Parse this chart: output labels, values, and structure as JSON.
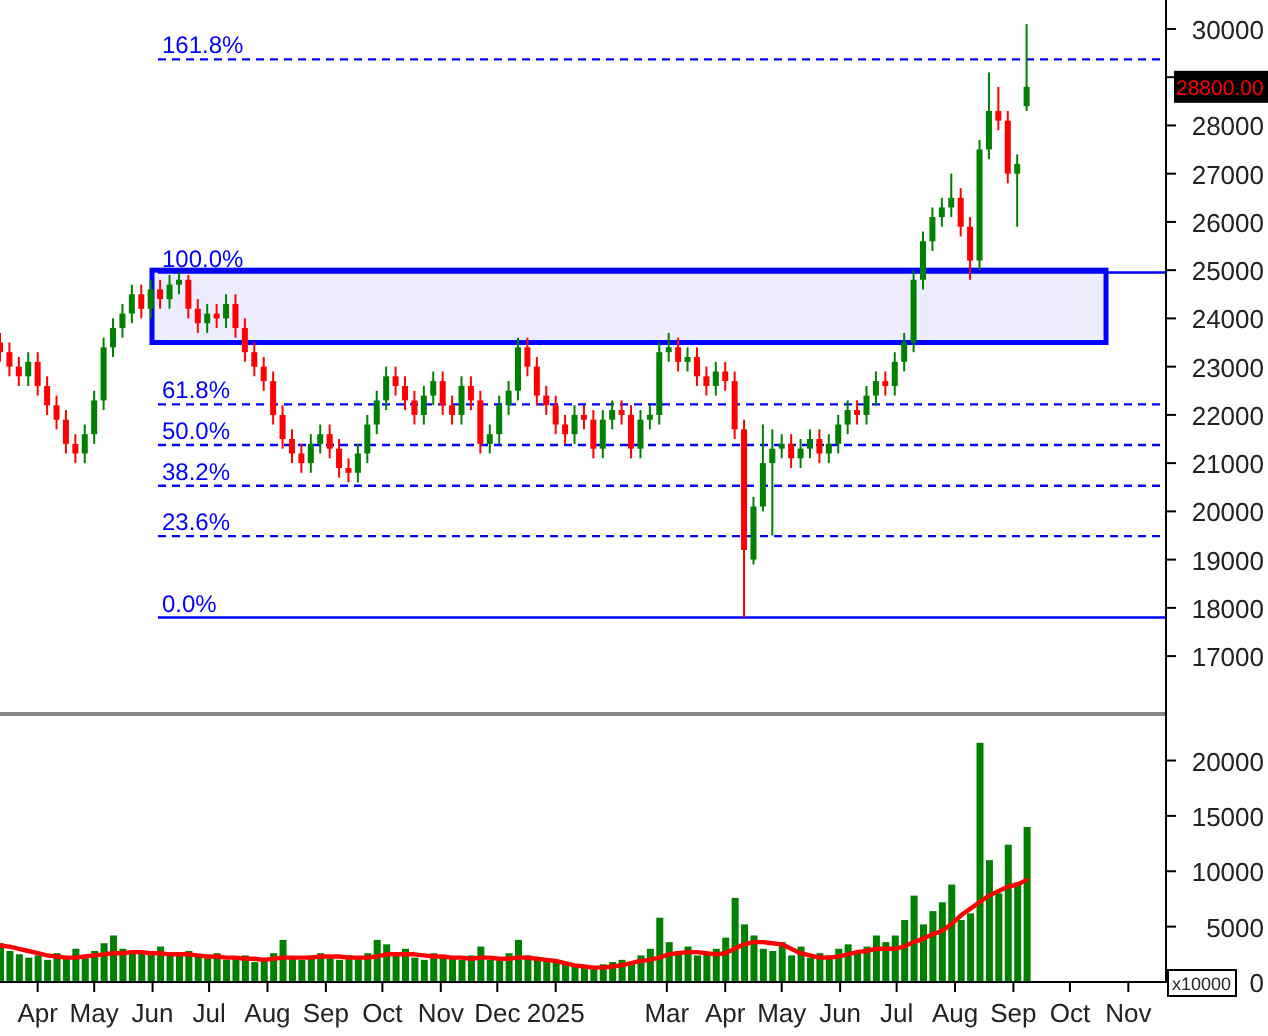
{
  "chart_data": [
    {
      "type": "candlestick",
      "tick_labels": "y",
      "x": [
        "2024-03-12",
        "2024-03-17",
        "2024-03-22",
        "2024-03-27",
        "2024-04-01",
        "2024-04-06",
        "2024-04-11",
        "2024-04-16",
        "2024-04-21",
        "2024-04-26",
        "2024-05-01",
        "2024-05-06",
        "2024-05-11",
        "2024-05-16",
        "2024-05-21",
        "2024-05-26",
        "2024-05-31",
        "2024-06-05",
        "2024-06-10",
        "2024-06-15",
        "2024-06-20",
        "2024-06-25",
        "2024-06-30",
        "2024-07-05",
        "2024-07-10",
        "2024-07-15",
        "2024-07-20",
        "2024-07-25",
        "2024-07-30",
        "2024-08-04",
        "2024-08-09",
        "2024-08-14",
        "2024-08-19",
        "2024-08-24",
        "2024-08-29",
        "2024-09-03",
        "2024-09-08",
        "2024-09-13",
        "2024-09-18",
        "2024-09-23",
        "2024-09-28",
        "2024-10-03",
        "2024-10-08",
        "2024-10-13",
        "2024-10-18",
        "2024-10-23",
        "2024-10-28",
        "2024-11-02",
        "2024-11-07",
        "2024-11-12",
        "2024-11-17",
        "2024-11-22",
        "2024-11-27",
        "2024-12-02",
        "2024-12-07",
        "2024-12-12",
        "2024-12-17",
        "2024-12-22",
        "2024-12-27",
        "2025-01-01",
        "2025-01-06",
        "2025-01-11",
        "2025-01-16",
        "2025-01-21",
        "2025-01-26",
        "2025-01-31",
        "2025-02-05",
        "2025-02-10",
        "2025-02-15",
        "2025-02-20",
        "2025-02-25",
        "2025-03-02",
        "2025-03-07",
        "2025-03-12",
        "2025-03-17",
        "2025-03-22",
        "2025-03-27",
        "2025-04-01",
        "2025-04-06",
        "2025-04-11",
        "2025-04-16",
        "2025-04-21",
        "2025-04-26",
        "2025-05-01",
        "2025-05-06",
        "2025-05-11",
        "2025-05-16",
        "2025-05-21",
        "2025-05-26",
        "2025-05-31",
        "2025-06-05",
        "2025-06-10",
        "2025-06-15",
        "2025-06-20",
        "2025-06-25",
        "2025-06-30",
        "2025-07-05",
        "2025-07-10",
        "2025-07-15",
        "2025-07-20",
        "2025-07-25",
        "2025-07-30",
        "2025-08-04",
        "2025-08-09",
        "2025-08-14",
        "2025-08-19",
        "2025-08-24",
        "2025-08-29",
        "2025-09-03",
        "2025-09-08"
      ],
      "ohlc": [
        [
          23500,
          23700,
          23100,
          23300
        ],
        [
          23300,
          23500,
          22800,
          23000
        ],
        [
          23000,
          23200,
          22600,
          22800
        ],
        [
          22800,
          23300,
          22600,
          23100
        ],
        [
          23100,
          23300,
          22400,
          22600
        ],
        [
          22600,
          22800,
          22000,
          22200
        ],
        [
          22200,
          22400,
          21700,
          21900
        ],
        [
          21900,
          22100,
          21200,
          21400
        ],
        [
          21400,
          21600,
          21000,
          21200
        ],
        [
          21200,
          21800,
          21000,
          21600
        ],
        [
          21600,
          22500,
          21400,
          22300
        ],
        [
          22300,
          23600,
          22100,
          23400
        ],
        [
          23400,
          24000,
          23200,
          23800
        ],
        [
          23800,
          24300,
          23600,
          24100
        ],
        [
          24100,
          24700,
          23900,
          24500
        ],
        [
          24500,
          24700,
          24000,
          24200
        ],
        [
          24200,
          24800,
          24000,
          24600
        ],
        [
          24600,
          24800,
          24200,
          24400
        ],
        [
          24400,
          24900,
          24200,
          24700
        ],
        [
          24700,
          24950,
          24500,
          24800
        ],
        [
          24800,
          24900,
          24000,
          24200
        ],
        [
          24200,
          24400,
          23700,
          23900
        ],
        [
          23900,
          24300,
          23700,
          24100
        ],
        [
          24100,
          24300,
          23800,
          24000
        ],
        [
          24000,
          24500,
          23800,
          24300
        ],
        [
          24300,
          24500,
          23600,
          23800
        ],
        [
          23800,
          24000,
          23100,
          23300
        ],
        [
          23300,
          23500,
          22800,
          23000
        ],
        [
          23000,
          23200,
          22500,
          22700
        ],
        [
          22700,
          22900,
          21800,
          22000
        ],
        [
          22000,
          22200,
          21300,
          21500
        ],
        [
          21500,
          21700,
          21000,
          21200
        ],
        [
          21200,
          21400,
          20800,
          21000
        ],
        [
          21000,
          21600,
          20800,
          21400
        ],
        [
          21400,
          21800,
          21200,
          21600
        ],
        [
          21600,
          21800,
          21100,
          21300
        ],
        [
          21300,
          21500,
          20700,
          20900
        ],
        [
          20900,
          21100,
          20600,
          20800
        ],
        [
          20800,
          21400,
          20600,
          21200
        ],
        [
          21200,
          22000,
          21000,
          21800
        ],
        [
          21800,
          22500,
          21600,
          22300
        ],
        [
          22300,
          23000,
          22100,
          22800
        ],
        [
          22800,
          23000,
          22400,
          22600
        ],
        [
          22600,
          22800,
          22100,
          22300
        ],
        [
          22300,
          22500,
          21800,
          22000
        ],
        [
          22000,
          22600,
          21800,
          22400
        ],
        [
          22400,
          22900,
          22200,
          22700
        ],
        [
          22700,
          22900,
          22000,
          22200
        ],
        [
          22200,
          22400,
          21800,
          22000
        ],
        [
          22000,
          22800,
          21800,
          22600
        ],
        [
          22600,
          22800,
          22100,
          22300
        ],
        [
          22300,
          22500,
          21200,
          21400
        ],
        [
          21400,
          21800,
          21200,
          21600
        ],
        [
          21600,
          22400,
          21400,
          22200
        ],
        [
          22200,
          22700,
          22000,
          22500
        ],
        [
          22500,
          23600,
          22300,
          23400
        ],
        [
          23400,
          23600,
          22800,
          23000
        ],
        [
          23000,
          23200,
          22200,
          22400
        ],
        [
          22400,
          22600,
          22000,
          22200
        ],
        [
          22200,
          22400,
          21600,
          21800
        ],
        [
          21800,
          22000,
          21400,
          21600
        ],
        [
          21600,
          22200,
          21400,
          22000
        ],
        [
          22000,
          22200,
          21700,
          21900
        ],
        [
          21900,
          22100,
          21100,
          21300
        ],
        [
          21300,
          22100,
          21100,
          21900
        ],
        [
          21900,
          22300,
          21700,
          22100
        ],
        [
          22100,
          22300,
          21800,
          22000
        ],
        [
          22000,
          22200,
          21100,
          21300
        ],
        [
          21300,
          22100,
          21100,
          21900
        ],
        [
          21900,
          22200,
          21700,
          22000
        ],
        [
          22000,
          23500,
          21800,
          23300
        ],
        [
          23300,
          23700,
          23100,
          23400
        ],
        [
          23400,
          23600,
          22900,
          23100
        ],
        [
          23100,
          23400,
          22900,
          23200
        ],
        [
          23200,
          23400,
          22600,
          22800
        ],
        [
          22800,
          23000,
          22400,
          22600
        ],
        [
          22600,
          23100,
          22400,
          22900
        ],
        [
          22900,
          23100,
          22500,
          22700
        ],
        [
          22700,
          22900,
          21500,
          21700
        ],
        [
          21700,
          21900,
          17800,
          19200
        ],
        [
          19000,
          20300,
          18900,
          20100
        ],
        [
          20100,
          21800,
          20000,
          21000
        ],
        [
          21000,
          21700,
          19500,
          21300
        ],
        [
          21300,
          21600,
          21100,
          21400
        ],
        [
          21400,
          21600,
          20900,
          21100
        ],
        [
          21100,
          21500,
          20900,
          21300
        ],
        [
          21300,
          21700,
          21100,
          21500
        ],
        [
          21500,
          21700,
          21000,
          21200
        ],
        [
          21200,
          21600,
          21000,
          21400
        ],
        [
          21400,
          22000,
          21200,
          21800
        ],
        [
          21800,
          22300,
          21600,
          22100
        ],
        [
          22100,
          22300,
          21800,
          22000
        ],
        [
          22000,
          22600,
          21800,
          22400
        ],
        [
          22400,
          22900,
          22200,
          22700
        ],
        [
          22700,
          22900,
          22400,
          22600
        ],
        [
          22600,
          23300,
          22400,
          23100
        ],
        [
          23100,
          23700,
          22900,
          23500
        ],
        [
          23500,
          25000,
          23300,
          24800
        ],
        [
          24800,
          25800,
          24600,
          25600
        ],
        [
          25600,
          26300,
          25400,
          26100
        ],
        [
          26100,
          26500,
          25900,
          26300
        ],
        [
          26300,
          27000,
          26100,
          26500
        ],
        [
          26500,
          26700,
          25700,
          25900
        ],
        [
          25900,
          26100,
          24800,
          25200
        ],
        [
          25200,
          27700,
          25000,
          27500
        ],
        [
          27500,
          29100,
          27300,
          28300
        ],
        [
          28300,
          28800,
          27900,
          28100
        ],
        [
          28100,
          28300,
          26800,
          27000
        ],
        [
          27000,
          27400,
          25900,
          27200
        ],
        [
          28400,
          30100,
          28300,
          28800
        ]
      ],
      "xlim": [
        "2024-03-12",
        "2025-11-21"
      ],
      "ylim": [
        15800,
        30600
      ],
      "yticks": [
        17000,
        18000,
        19000,
        20000,
        21000,
        22000,
        23000,
        24000,
        25000,
        26000,
        27000,
        28000,
        {
          "value": 29000,
          "label": null
        },
        30000
      ],
      "ref_lines": [
        {
          "axis": "y",
          "value": 29369,
          "line_style": "dashed",
          "color": "#0000ff"
        },
        {
          "axis": "y",
          "value": 24950,
          "line_style": "solid",
          "color": "#0000ff"
        },
        {
          "axis": "y",
          "value": 22219,
          "line_style": "dashed",
          "color": "#0000ff"
        },
        {
          "axis": "y",
          "value": 21375,
          "line_style": "dashed",
          "color": "#0000ff"
        },
        {
          "axis": "y",
          "value": 20531,
          "line_style": "dashed",
          "color": "#0000ff"
        },
        {
          "axis": "y",
          "value": 19487,
          "line_style": "dashed",
          "color": "#0000ff"
        },
        {
          "axis": "y",
          "value": 17800,
          "line_style": "solid",
          "color": "#0000ff"
        }
      ],
      "bands": [
        {
          "axis": "y",
          "from": 23500,
          "to": 25000,
          "color": "#0000ff"
        }
      ],
      "annotations": [
        {
          "text": "161.8%",
          "y": 29369
        },
        {
          "text": "100.0%",
          "y": 24950
        },
        {
          "text": "61.8%",
          "y": 22219
        },
        {
          "text": "50.0%",
          "y": 21375
        },
        {
          "text": "38.2%",
          "y": 20531
        },
        {
          "text": "23.6%",
          "y": 19487
        },
        {
          "text": "0.0%",
          "y": 17800
        },
        "28800.00"
      ]
    },
    {
      "type": "bar",
      "x": [
        "2024-03-12",
        "2024-03-17",
        "2024-03-22",
        "2024-03-27",
        "2024-04-01",
        "2024-04-06",
        "2024-04-11",
        "2024-04-16",
        "2024-04-21",
        "2024-04-26",
        "2024-05-01",
        "2024-05-06",
        "2024-05-11",
        "2024-05-16",
        "2024-05-21",
        "2024-05-26",
        "2024-05-31",
        "2024-06-05",
        "2024-06-10",
        "2024-06-15",
        "2024-06-20",
        "2024-06-25",
        "2024-06-30",
        "2024-07-05",
        "2024-07-10",
        "2024-07-15",
        "2024-07-20",
        "2024-07-25",
        "2024-07-30",
        "2024-08-04",
        "2024-08-09",
        "2024-08-14",
        "2024-08-19",
        "2024-08-24",
        "2024-08-29",
        "2024-09-03",
        "2024-09-08",
        "2024-09-13",
        "2024-09-18",
        "2024-09-23",
        "2024-09-28",
        "2024-10-03",
        "2024-10-08",
        "2024-10-13",
        "2024-10-18",
        "2024-10-23",
        "2024-10-28",
        "2024-11-02",
        "2024-11-07",
        "2024-11-12",
        "2024-11-17",
        "2024-11-22",
        "2024-11-27",
        "2024-12-02",
        "2024-12-07",
        "2024-12-12",
        "2024-12-17",
        "2024-12-22",
        "2024-12-27",
        "2025-01-01",
        "2025-01-06",
        "2025-01-11",
        "2025-01-16",
        "2025-01-21",
        "2025-01-26",
        "2025-01-31",
        "2025-02-05",
        "2025-02-10",
        "2025-02-15",
        "2025-02-20",
        "2025-02-25",
        "2025-03-02",
        "2025-03-07",
        "2025-03-12",
        "2025-03-17",
        "2025-03-22",
        "2025-03-27",
        "2025-04-01",
        "2025-04-06",
        "2025-04-11",
        "2025-04-16",
        "2025-04-21",
        "2025-04-26",
        "2025-05-01",
        "2025-05-06",
        "2025-05-11",
        "2025-05-16",
        "2025-05-21",
        "2025-05-26",
        "2025-05-31",
        "2025-06-05",
        "2025-06-10",
        "2025-06-15",
        "2025-06-20",
        "2025-06-25",
        "2025-06-30",
        "2025-07-05",
        "2025-07-10",
        "2025-07-15",
        "2025-07-20",
        "2025-07-25",
        "2025-07-30",
        "2025-08-04",
        "2025-08-09",
        "2025-08-14",
        "2025-08-19",
        "2025-08-24",
        "2025-08-29",
        "2025-09-03",
        "2025-09-08"
      ],
      "series": [
        {
          "type": "bar",
          "color": "#008000",
          "values": [
            3500,
            2800,
            2500,
            2200,
            2400,
            2000,
            2600,
            2200,
            3000,
            2400,
            2800,
            3500,
            4200,
            3000,
            2600,
            2800,
            2500,
            3200,
            2400,
            2600,
            2800,
            2400,
            2200,
            2600,
            2000,
            2200,
            2400,
            1800,
            2000,
            2600,
            3800,
            2200,
            2000,
            2400,
            2600,
            2200,
            2000,
            2400,
            2200,
            2600,
            3800,
            3400,
            2400,
            3000,
            2200,
            2000,
            2600,
            2400,
            2200,
            2000,
            2400,
            3200,
            2000,
            2200,
            2600,
            3800,
            2400,
            2200,
            2000,
            1800,
            1600,
            1400,
            1500,
            1400,
            1600,
            1800,
            2000,
            1600,
            2400,
            3000,
            5800,
            3600,
            2800,
            3200,
            2400,
            2600,
            3000,
            4000,
            7600,
            5200,
            4200,
            3000,
            2800,
            3600,
            2400,
            3200,
            2200,
            2600,
            2400,
            3000,
            3400,
            2800,
            3200,
            4200,
            3600,
            4200,
            5600,
            7800,
            5200,
            6400,
            7200,
            8800,
            5600,
            6200,
            21600,
            11000,
            8000,
            12400,
            9000,
            14000
          ]
        },
        {
          "type": "line",
          "color": "#ff0000",
          "values": [
            3300,
            3200,
            3000,
            2800,
            2600,
            2400,
            2300,
            2200,
            2200,
            2300,
            2400,
            2500,
            2600,
            2600,
            2700,
            2700,
            2600,
            2600,
            2500,
            2500,
            2500,
            2400,
            2300,
            2300,
            2200,
            2200,
            2100,
            2100,
            2000,
            2100,
            2200,
            2200,
            2200,
            2200,
            2300,
            2300,
            2300,
            2200,
            2200,
            2200,
            2300,
            2500,
            2500,
            2500,
            2500,
            2400,
            2300,
            2300,
            2200,
            2200,
            2100,
            2200,
            2200,
            2100,
            2100,
            2200,
            2200,
            2100,
            2000,
            1900,
            1700,
            1500,
            1400,
            1300,
            1300,
            1400,
            1500,
            1700,
            1900,
            2000,
            2200,
            2500,
            2600,
            2700,
            2700,
            2600,
            2500,
            2600,
            3000,
            3400,
            3600,
            3600,
            3500,
            3400,
            3000,
            2600,
            2400,
            2200,
            2200,
            2300,
            2500,
            2700,
            2800,
            3000,
            3000,
            3000,
            3200,
            3600,
            3900,
            4300,
            4600,
            5200,
            6000,
            6600,
            7200,
            7800,
            8200,
            8600,
            8800,
            9200
          ]
        }
      ],
      "xlim": [
        "2024-03-12",
        "2025-11-21"
      ],
      "xticks": [
        {
          "value": "2024-04-01",
          "label": "Apr"
        },
        {
          "value": "2024-05-01",
          "label": "May"
        },
        {
          "value": "2024-06-01",
          "label": "Jun"
        },
        {
          "value": "2024-07-01",
          "label": "Jul"
        },
        {
          "value": "2024-08-01",
          "label": "Aug"
        },
        {
          "value": "2024-09-01",
          "label": "Sep"
        },
        {
          "value": "2024-10-01",
          "label": "Oct"
        },
        {
          "value": "2024-11-01",
          "label": "Nov"
        },
        {
          "value": "2024-12-01",
          "label": "Dec"
        },
        {
          "value": "2025-01-01",
          "label": "2025"
        },
        {
          "value": "2025-03-01",
          "label": "Mar"
        },
        {
          "value": "2025-04-01",
          "label": "Apr"
        },
        {
          "value": "2025-05-01",
          "label": "May"
        },
        {
          "value": "2025-06-01",
          "label": "Jun"
        },
        {
          "value": "2025-07-01",
          "label": "Jul"
        },
        {
          "value": "2025-08-01",
          "label": "Aug"
        },
        {
          "value": "2025-09-01",
          "label": "Sep"
        },
        {
          "value": "2025-10-01",
          "label": "Oct"
        },
        {
          "value": "2025-11-01",
          "label": "Nov"
        }
      ],
      "ylim": [
        0,
        24200
      ],
      "yticks": [
        0,
        5000,
        10000,
        15000,
        20000
      ],
      "annotations": [
        "x10000"
      ]
    }
  ]
}
